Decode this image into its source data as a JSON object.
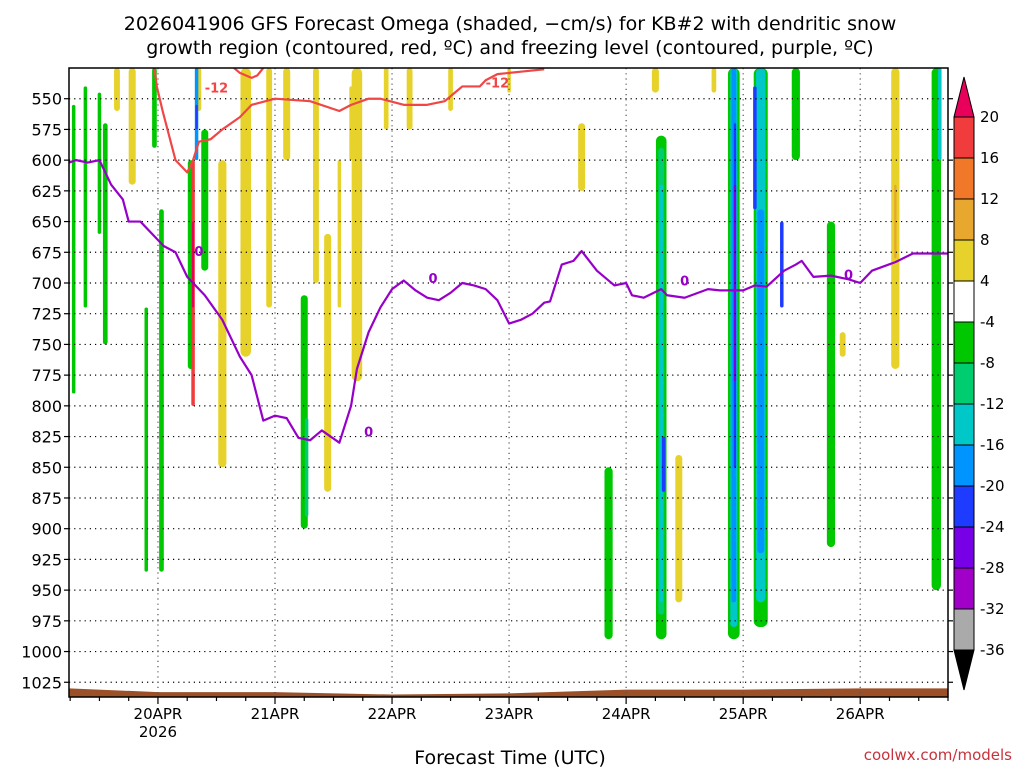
{
  "chart_data": {
    "type": "heatmap",
    "title_line1": "2026041906 GFS Forecast Omega (shaded, −cm/s) for KB#2 with dendritic snow",
    "title_line2": "growth region (contoured, red, ºC) and freezing level (contoured, purple, ºC)",
    "xlabel": "Forecast Time (UTC)",
    "credit": "coolwx.com/models",
    "x_tick_labels": [
      "20APR",
      "21APR",
      "22APR",
      "23APR",
      "24APR",
      "25APR",
      "26APR"
    ],
    "x_tick_days": [
      1,
      2,
      3,
      4,
      5,
      6,
      7
    ],
    "x_sublabel": "2026",
    "xlim_days": [
      0.24,
      7.75
    ],
    "y_ticks": [
      550,
      575,
      600,
      625,
      650,
      675,
      700,
      725,
      750,
      775,
      800,
      825,
      850,
      875,
      900,
      925,
      950,
      975,
      1000,
      1025
    ],
    "ylim_hpa": [
      525,
      1037
    ],
    "colorbar": {
      "labels": [
        "20",
        "16",
        "12",
        "8",
        "4",
        "-4",
        "-8",
        "-12",
        "-16",
        "-20",
        "-24",
        "-28",
        "-32",
        "-36"
      ],
      "colors": [
        "#e8005a",
        "#f03c3c",
        "#f07828",
        "#e8a830",
        "#e6d22a",
        "#ffffff",
        "#00c800",
        "#00cc70",
        "#00c8c8",
        "#0094ff",
        "#1e3cff",
        "#7800e6",
        "#a000c8",
        "#aaaaaa",
        "#000000"
      ]
    },
    "dendritic_contour": {
      "color": "#f04646",
      "label": "-12",
      "points_day_hpa": [
        [
          0.97,
          525
        ],
        [
          0.99,
          540
        ],
        [
          1.04,
          560
        ],
        [
          1.15,
          600
        ],
        [
          1.25,
          610
        ],
        [
          1.3,
          600
        ],
        [
          1.35,
          585
        ],
        [
          1.45,
          583
        ],
        [
          1.55,
          575
        ],
        [
          1.7,
          565
        ],
        [
          1.8,
          555
        ],
        [
          2.0,
          550
        ],
        [
          2.3,
          552
        ],
        [
          2.55,
          560
        ],
        [
          2.65,
          555
        ],
        [
          2.8,
          550
        ],
        [
          2.9,
          550
        ],
        [
          3.1,
          555
        ],
        [
          3.3,
          555
        ],
        [
          3.45,
          552
        ],
        [
          3.5,
          548
        ],
        [
          3.6,
          540
        ],
        [
          3.75,
          540
        ],
        [
          3.8,
          535
        ],
        [
          3.9,
          530
        ],
        [
          4.1,
          528
        ],
        [
          4.3,
          526
        ]
      ]
    },
    "dendritic_contour_2": {
      "color": "#f04646",
      "points_day_hpa": [
        [
          1.65,
          525
        ],
        [
          1.7,
          529
        ],
        [
          1.75,
          531
        ],
        [
          1.8,
          533
        ],
        [
          1.85,
          531
        ],
        [
          1.9,
          525
        ]
      ]
    },
    "freezing_level": {
      "color": "#9600c8",
      "label": "0",
      "points_day_hpa": [
        [
          0.24,
          602
        ],
        [
          0.3,
          600
        ],
        [
          0.4,
          602
        ],
        [
          0.5,
          600
        ],
        [
          0.6,
          620
        ],
        [
          0.7,
          632
        ],
        [
          0.75,
          650
        ],
        [
          0.85,
          650
        ],
        [
          0.95,
          660
        ],
        [
          1.05,
          670
        ],
        [
          1.15,
          675
        ],
        [
          1.25,
          695
        ],
        [
          1.4,
          710
        ],
        [
          1.55,
          730
        ],
        [
          1.65,
          750
        ],
        [
          1.7,
          760
        ],
        [
          1.8,
          775
        ],
        [
          1.9,
          812
        ],
        [
          2.0,
          808
        ],
        [
          2.1,
          810
        ],
        [
          2.2,
          826
        ],
        [
          2.3,
          828
        ],
        [
          2.4,
          820
        ],
        [
          2.55,
          830
        ],
        [
          2.65,
          800
        ],
        [
          2.7,
          770
        ],
        [
          2.8,
          740
        ],
        [
          2.9,
          720
        ],
        [
          3.0,
          705
        ],
        [
          3.1,
          698
        ],
        [
          3.2,
          706
        ],
        [
          3.3,
          712
        ],
        [
          3.4,
          714
        ],
        [
          3.5,
          708
        ],
        [
          3.6,
          700
        ],
        [
          3.7,
          702
        ],
        [
          3.8,
          705
        ],
        [
          3.9,
          714
        ],
        [
          4.0,
          733
        ],
        [
          4.1,
          730
        ],
        [
          4.2,
          725
        ],
        [
          4.3,
          716
        ],
        [
          4.35,
          715
        ],
        [
          4.45,
          685
        ],
        [
          4.55,
          682
        ],
        [
          4.62,
          674
        ],
        [
          4.75,
          690
        ],
        [
          4.9,
          702
        ],
        [
          5.0,
          700
        ],
        [
          5.05,
          710
        ],
        [
          5.15,
          712
        ],
        [
          5.3,
          705
        ],
        [
          5.35,
          710
        ],
        [
          5.5,
          712
        ],
        [
          5.7,
          705
        ],
        [
          5.8,
          706
        ],
        [
          6.0,
          706
        ],
        [
          6.1,
          702
        ],
        [
          6.2,
          703
        ],
        [
          6.35,
          690
        ],
        [
          6.45,
          685
        ],
        [
          6.5,
          682
        ],
        [
          6.6,
          695
        ],
        [
          6.75,
          694
        ],
        [
          6.9,
          697
        ],
        [
          7.0,
          700
        ],
        [
          7.1,
          690
        ],
        [
          7.3,
          683
        ],
        [
          7.45,
          676
        ],
        [
          7.75,
          676
        ]
      ]
    },
    "omega_patches": [
      {
        "day": 0.28,
        "p1": 555,
        "p2": 790,
        "w": 0.03,
        "color": "#00c800"
      },
      {
        "day": 0.38,
        "p1": 540,
        "p2": 720,
        "w": 0.03,
        "color": "#00c800"
      },
      {
        "day": 0.5,
        "p1": 545,
        "p2": 660,
        "w": 0.03,
        "color": "#00c800"
      },
      {
        "day": 0.55,
        "p1": 570,
        "p2": 750,
        "w": 0.04,
        "color": "#00c800"
      },
      {
        "day": 0.65,
        "p1": 525,
        "p2": 560,
        "w": 0.05,
        "color": "#e6d22a"
      },
      {
        "day": 0.78,
        "p1": 525,
        "p2": 620,
        "w": 0.06,
        "color": "#e6d22a"
      },
      {
        "day": 0.9,
        "p1": 720,
        "p2": 935,
        "w": 0.03,
        "color": "#00c800"
      },
      {
        "day": 0.97,
        "p1": 525,
        "p2": 590,
        "w": 0.04,
        "color": "#00c800"
      },
      {
        "day": 1.03,
        "p1": 640,
        "p2": 935,
        "w": 0.04,
        "color": "#00c800"
      },
      {
        "day": 1.28,
        "p1": 600,
        "p2": 770,
        "w": 0.05,
        "color": "#00c800"
      },
      {
        "day": 1.35,
        "p1": 525,
        "p2": 560,
        "w": 0.04,
        "color": "#e6d22a"
      },
      {
        "day": 1.4,
        "p1": 575,
        "p2": 690,
        "w": 0.06,
        "color": "#00c800"
      },
      {
        "day": 1.55,
        "p1": 600,
        "p2": 850,
        "w": 0.07,
        "color": "#e6d22a"
      },
      {
        "day": 1.75,
        "p1": 525,
        "p2": 760,
        "w": 0.09,
        "color": "#e6d22a"
      },
      {
        "day": 1.95,
        "p1": 525,
        "p2": 720,
        "w": 0.05,
        "color": "#e6d22a"
      },
      {
        "day": 2.1,
        "p1": 525,
        "p2": 600,
        "w": 0.06,
        "color": "#e6d22a"
      },
      {
        "day": 2.25,
        "p1": 710,
        "p2": 900,
        "w": 0.06,
        "color": "#00c800"
      },
      {
        "day": 2.35,
        "p1": 525,
        "p2": 700,
        "w": 0.05,
        "color": "#e6d22a"
      },
      {
        "day": 2.45,
        "p1": 660,
        "p2": 870,
        "w": 0.06,
        "color": "#e6d22a"
      },
      {
        "day": 2.55,
        "p1": 600,
        "p2": 720,
        "w": 0.03,
        "color": "#e6d22a"
      },
      {
        "day": 2.65,
        "p1": 540,
        "p2": 600,
        "w": 0.03,
        "color": "#e6d22a"
      },
      {
        "day": 2.7,
        "p1": 525,
        "p2": 780,
        "w": 0.09,
        "color": "#e6d22a"
      },
      {
        "day": 2.95,
        "p1": 525,
        "p2": 575,
        "w": 0.04,
        "color": "#e6d22a"
      },
      {
        "day": 3.15,
        "p1": 525,
        "p2": 575,
        "w": 0.05,
        "color": "#e6d22a"
      },
      {
        "day": 3.5,
        "p1": 525,
        "p2": 560,
        "w": 0.04,
        "color": "#e6d22a"
      },
      {
        "day": 4.0,
        "p1": 525,
        "p2": 545,
        "w": 0.03,
        "color": "#e6d22a"
      },
      {
        "day": 4.62,
        "p1": 570,
        "p2": 625,
        "w": 0.06,
        "color": "#e6d22a"
      },
      {
        "day": 4.85,
        "p1": 850,
        "p2": 990,
        "w": 0.07,
        "color": "#00c800"
      },
      {
        "day": 5.25,
        "p1": 525,
        "p2": 545,
        "w": 0.06,
        "color": "#e6d22a"
      },
      {
        "day": 5.3,
        "p1": 580,
        "p2": 990,
        "w": 0.09,
        "color": "#00c800"
      },
      {
        "day": 5.45,
        "p1": 840,
        "p2": 960,
        "w": 0.06,
        "color": "#e6d22a"
      },
      {
        "day": 5.75,
        "p1": 525,
        "p2": 545,
        "w": 0.04,
        "color": "#e6d22a"
      },
      {
        "day": 5.92,
        "p1": 525,
        "p2": 990,
        "w": 0.1,
        "color": "#00c800"
      },
      {
        "day": 6.15,
        "p1": 525,
        "p2": 980,
        "w": 0.12,
        "color": "#00c800"
      },
      {
        "day": 6.45,
        "p1": 525,
        "p2": 600,
        "w": 0.07,
        "color": "#00c800"
      },
      {
        "day": 6.75,
        "p1": 650,
        "p2": 915,
        "w": 0.07,
        "color": "#00c800"
      },
      {
        "day": 6.85,
        "p1": 740,
        "p2": 760,
        "w": 0.05,
        "color": "#e6d22a"
      },
      {
        "day": 7.3,
        "p1": 525,
        "p2": 770,
        "w": 0.07,
        "color": "#e6d22a"
      },
      {
        "day": 7.65,
        "p1": 525,
        "p2": 950,
        "w": 0.08,
        "color": "#00c800"
      }
    ],
    "omega_cores": [
      {
        "day": 1.3,
        "p1": 600,
        "p2": 800,
        "w": 0.03,
        "color": "#f03c3c"
      },
      {
        "day": 1.3,
        "p1": 650,
        "p2": 720,
        "w": 0.02,
        "color": "#e8005a"
      },
      {
        "day": 1.33,
        "p1": 525,
        "p2": 600,
        "w": 0.03,
        "color": "#0094ff"
      },
      {
        "day": 1.33,
        "p1": 555,
        "p2": 575,
        "w": 0.02,
        "color": "#1e3cff"
      },
      {
        "day": 2.27,
        "p1": 810,
        "p2": 890,
        "w": 0.03,
        "color": "#00cc70"
      },
      {
        "day": 5.3,
        "p1": 590,
        "p2": 970,
        "w": 0.05,
        "color": "#00cc70"
      },
      {
        "day": 5.3,
        "p1": 620,
        "p2": 960,
        "w": 0.03,
        "color": "#00c8c8"
      },
      {
        "day": 5.32,
        "p1": 825,
        "p2": 870,
        "w": 0.03,
        "color": "#1e3cff"
      },
      {
        "day": 5.92,
        "p1": 525,
        "p2": 980,
        "w": 0.06,
        "color": "#00c8c8"
      },
      {
        "day": 5.92,
        "p1": 525,
        "p2": 960,
        "w": 0.04,
        "color": "#0094ff"
      },
      {
        "day": 5.93,
        "p1": 570,
        "p2": 850,
        "w": 0.02,
        "color": "#1e3cff"
      },
      {
        "day": 5.93,
        "p1": 620,
        "p2": 780,
        "w": 0.02,
        "color": "#7800e6"
      },
      {
        "day": 6.15,
        "p1": 525,
        "p2": 960,
        "w": 0.08,
        "color": "#00c8c8"
      },
      {
        "day": 6.15,
        "p1": 640,
        "p2": 920,
        "w": 0.06,
        "color": "#0094ff"
      },
      {
        "day": 6.33,
        "p1": 650,
        "p2": 720,
        "w": 0.03,
        "color": "#1e3cff"
      },
      {
        "day": 6.1,
        "p1": 540,
        "p2": 640,
        "w": 0.03,
        "color": "#1e3cff"
      },
      {
        "day": 7.3,
        "p1": 620,
        "p2": 680,
        "w": 0.02,
        "color": "#e8a830"
      },
      {
        "day": 7.68,
        "p1": 525,
        "p2": 600,
        "w": 0.03,
        "color": "#00c8c8"
      }
    ],
    "terrain_color": "#9c5028",
    "terrain_surface_hpa": [
      [
        0.24,
        1030
      ],
      [
        1.0,
        1033
      ],
      [
        2.0,
        1033
      ],
      [
        3.0,
        1035
      ],
      [
        4.0,
        1034
      ],
      [
        5.0,
        1031
      ],
      [
        6.0,
        1031
      ],
      [
        7.0,
        1030
      ],
      [
        7.75,
        1030
      ]
    ]
  }
}
